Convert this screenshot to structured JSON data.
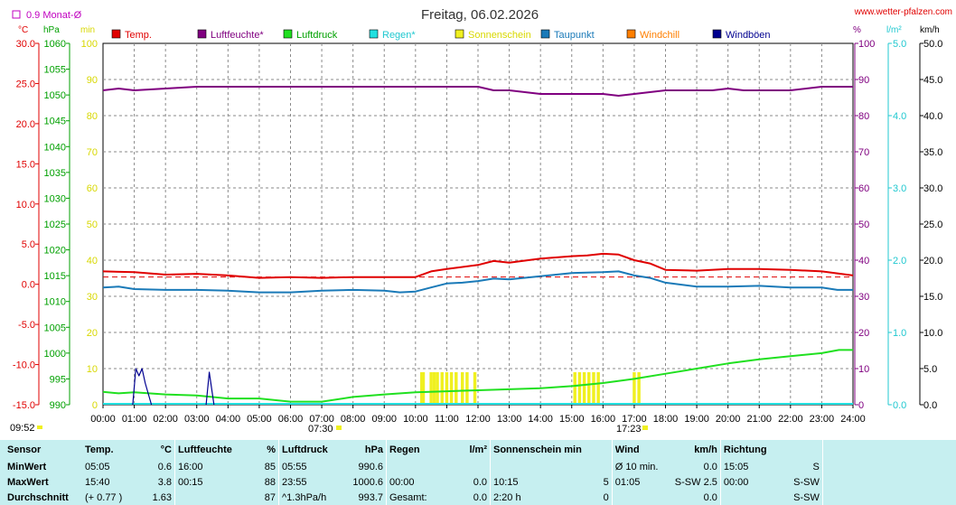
{
  "title": "Freitag, 06.02.2026",
  "site": "www.wetter-pfalzen.com",
  "month_avg_label": "0.9 Monat-Ø",
  "axes_units": {
    "temp": "°C",
    "pressure": "hPa",
    "min": "min",
    "percent": "%",
    "rain": "l/m²",
    "wind": "km/h"
  },
  "legend": [
    {
      "label": "Temp.",
      "color": "#e00000",
      "textColor": "#e00000"
    },
    {
      "label": "Luftfeuchte*",
      "color": "#800080",
      "textColor": "#800080"
    },
    {
      "label": "Luftdruck",
      "color": "#20e020",
      "textColor": "#00a000"
    },
    {
      "label": "Regen*",
      "color": "#20e0e0",
      "textColor": "#20c8d0"
    },
    {
      "label": "Sonnenschein",
      "color": "#f0f020",
      "textColor": "#d8d800"
    },
    {
      "label": "Taupunkt",
      "color": "#1a7ab8",
      "textColor": "#1a7ab8"
    },
    {
      "label": "Windchill",
      "color": "#ff7f00",
      "textColor": "#ff7f00"
    },
    {
      "label": "Windböen",
      "color": "#000090",
      "textColor": "#000090"
    }
  ],
  "colors": {
    "temp": "#e00000",
    "humidity": "#800080",
    "pressure": "#20e020",
    "rain": "#20e0e0",
    "sun": "#f0f020",
    "dew": "#1a7ab8",
    "gust": "#000090",
    "avg": "#e00000"
  },
  "chart_data": {
    "type": "line",
    "x_unit": "hours",
    "x_ticks": [
      "00:00",
      "01:00",
      "02:00",
      "03:00",
      "04:00",
      "05:00",
      "06:00",
      "07:00",
      "08:00",
      "09:00",
      "10:00",
      "11:00",
      "12:00",
      "13:00",
      "14:00",
      "15:00",
      "16:00",
      "17:00",
      "18:00",
      "19:00",
      "20:00",
      "21:00",
      "22:00",
      "23:00",
      "24:00"
    ],
    "xlim": [
      0,
      24
    ],
    "axes": {
      "temp": {
        "unit": "°C",
        "range": [
          -15,
          30
        ],
        "ticks": [
          "30.0",
          "25.0",
          "20.0",
          "15.0",
          "10.0",
          "5.0",
          "0.0",
          "-5.0",
          "-10.0",
          "-15.0"
        ]
      },
      "pressure": {
        "unit": "hPa",
        "range": [
          990,
          1060
        ],
        "ticks": [
          "1060",
          "1055",
          "1050",
          "1045",
          "1040",
          "1035",
          "1030",
          "1025",
          "1020",
          "1015",
          "1010",
          "1005",
          "1000",
          "995",
          "990"
        ]
      },
      "sunshine_min": {
        "unit": "min",
        "range": [
          0,
          100
        ],
        "ticks": [
          "100",
          "90",
          "80",
          "70",
          "60",
          "50",
          "40",
          "30",
          "20",
          "10",
          "0"
        ]
      },
      "humidity": {
        "unit": "%",
        "range": [
          0,
          100
        ],
        "ticks": [
          "100",
          "90",
          "80",
          "70",
          "60",
          "50",
          "40",
          "30",
          "20",
          "10",
          "0"
        ]
      },
      "rain": {
        "unit": "l/m²",
        "range": [
          0,
          5
        ],
        "ticks": [
          "5.0",
          "4.0",
          "3.0",
          "2.0",
          "1.0",
          "0.0"
        ]
      },
      "wind": {
        "unit": "km/h",
        "range": [
          0,
          50
        ],
        "ticks": [
          "50.0",
          "45.0",
          "40.0",
          "35.0",
          "30.0",
          "25.0",
          "20.0",
          "15.0",
          "10.0",
          "5.0",
          "0.0"
        ]
      }
    },
    "month_avg_temp": 0.9,
    "series": [
      {
        "name": "Temp.",
        "axis": "temp",
        "x": [
          0,
          1,
          2,
          3,
          4,
          5,
          6,
          7,
          8,
          9,
          10,
          10.5,
          11,
          12,
          12.5,
          13,
          14,
          15,
          15.5,
          16,
          16.5,
          17,
          17.5,
          18,
          19,
          20,
          21,
          22,
          23,
          24
        ],
        "values": [
          1.6,
          1.5,
          1.2,
          1.3,
          1.1,
          0.8,
          0.9,
          0.8,
          0.9,
          0.9,
          0.9,
          1.6,
          1.9,
          2.4,
          2.9,
          2.7,
          3.2,
          3.5,
          3.6,
          3.8,
          3.7,
          3.0,
          2.6,
          1.8,
          1.7,
          1.9,
          1.9,
          1.8,
          1.6,
          1.1
        ]
      },
      {
        "name": "Luftfeuchte*",
        "axis": "humidity",
        "x": [
          0,
          0.5,
          1,
          2,
          3,
          4,
          6,
          8,
          10,
          12,
          12.5,
          13,
          14,
          15,
          16,
          16.5,
          17,
          18,
          19,
          19.5,
          20,
          20.5,
          21,
          22,
          23,
          24
        ],
        "values": [
          87,
          87.5,
          87,
          87.5,
          88,
          88,
          88,
          88,
          88,
          88,
          87,
          87,
          86,
          86,
          86,
          85.5,
          86,
          87,
          87,
          87,
          87.5,
          87,
          87,
          87,
          88,
          88
        ]
      },
      {
        "name": "Luftdruck",
        "axis": "pressure",
        "x": [
          0,
          0.5,
          1,
          2,
          3,
          4,
          5,
          6,
          7,
          8,
          9,
          10,
          11,
          12,
          13,
          14,
          15,
          16,
          17,
          18,
          19,
          20,
          21,
          22,
          23,
          23.55,
          24
        ],
        "values": [
          992.5,
          992.2,
          992.4,
          992.0,
          991.8,
          991.2,
          991.2,
          990.6,
          990.6,
          991.5,
          992.0,
          992.4,
          992.6,
          992.8,
          993.0,
          993.2,
          993.6,
          994.2,
          995.0,
          996.0,
          997.0,
          998.0,
          998.8,
          999.4,
          1000.0,
          1000.6,
          1000.6
        ]
      },
      {
        "name": "Taupunkt",
        "axis": "temp",
        "x": [
          0,
          0.5,
          1,
          2,
          3,
          4,
          5,
          6,
          7,
          8,
          9,
          9.5,
          10,
          10.5,
          11,
          11.5,
          12,
          12.5,
          13,
          14,
          15,
          16,
          16.5,
          17,
          17.5,
          18,
          19,
          20,
          21,
          22,
          23,
          23.5,
          24
        ],
        "values": [
          -0.4,
          -0.3,
          -0.6,
          -0.7,
          -0.7,
          -0.8,
          -1.0,
          -1.0,
          -0.8,
          -0.7,
          -0.8,
          -1.0,
          -0.9,
          -0.4,
          0.1,
          0.2,
          0.4,
          0.7,
          0.6,
          1.0,
          1.4,
          1.5,
          1.6,
          1.1,
          0.8,
          0.2,
          -0.3,
          -0.3,
          -0.2,
          -0.4,
          -0.4,
          -0.7,
          -0.7
        ]
      },
      {
        "name": "Windböen",
        "axis": "wind",
        "x": [
          0.95,
          1.05,
          1.15,
          1.25,
          1.35,
          1.55,
          1.75,
          3.3,
          3.4,
          3.55
        ],
        "values": [
          0,
          5,
          4,
          5,
          3,
          0,
          null,
          0,
          4.5,
          0
        ]
      }
    ],
    "sunshine_bars": [
      [
        10.15,
        0.15
      ],
      [
        10.45,
        0.1
      ],
      [
        10.55,
        0.1
      ],
      [
        10.65,
        0.1
      ],
      [
        10.8,
        0.1
      ],
      [
        10.95,
        0.1
      ],
      [
        11.1,
        0.1
      ],
      [
        11.25,
        0.1
      ],
      [
        11.45,
        0.1
      ],
      [
        11.6,
        0.1
      ],
      [
        11.85,
        0.1
      ],
      [
        15.05,
        0.1
      ],
      [
        15.2,
        0.1
      ],
      [
        15.35,
        0.1
      ],
      [
        15.5,
        0.1
      ],
      [
        15.65,
        0.1
      ],
      [
        15.8,
        0.1
      ],
      [
        16.95,
        0.1
      ],
      [
        17.1,
        0.1
      ]
    ],
    "sunshine_bar_height_min": 5
  },
  "sunrise": "07:30",
  "sunset": "17:23",
  "update_time": "09:52",
  "stats": {
    "header": [
      "Sensor",
      "Temp.",
      "°C",
      "Luftfeuchte",
      "%",
      "Luftdruck",
      "hPa",
      "Regen",
      "l/m²",
      "Sonnenschein min",
      "",
      "Wind",
      "km/h",
      "Richtung",
      ""
    ],
    "rows": [
      [
        "MinWert",
        "05:05",
        "0.6",
        "16:00",
        "85",
        "05:55",
        "990.6",
        "",
        "",
        "",
        "",
        "Ø 10 min.",
        "0.0",
        "15:05",
        "S"
      ],
      [
        "MaxWert",
        "15:40",
        "3.8",
        "00:15",
        "88",
        "23:55",
        "1000.6",
        "00:00",
        "0.0",
        "10:15",
        "5",
        "01:05",
        "S-SW 2.5",
        "00:00",
        "S-SW"
      ],
      [
        "Durchschnitt",
        "(+ 0.77 )",
        "1.63",
        "",
        "87",
        "^1.3hPa/h",
        "993.7",
        "Gesamt:",
        "0.0",
        "2:20 h",
        "0",
        "",
        "0.0",
        "",
        "S-SW"
      ]
    ]
  }
}
